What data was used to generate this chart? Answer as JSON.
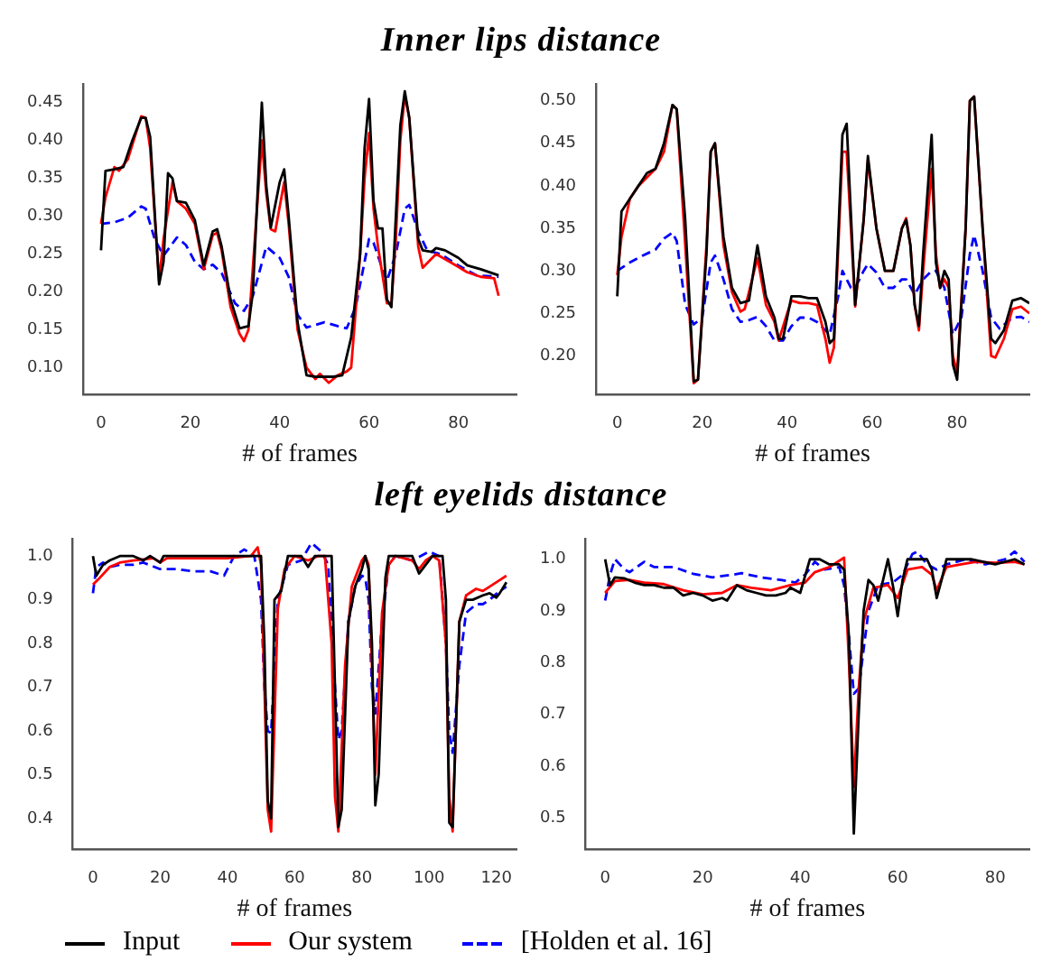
{
  "chart_data": [
    {
      "type": "line",
      "title": "Inner lips distance",
      "xlabel": "# of frames",
      "xlim": [
        -4,
        93
      ],
      "ylim": [
        0.065,
        0.475
      ],
      "xticks": [
        0,
        20,
        40,
        60,
        80
      ],
      "yticks": [
        {
          "value": 0.1,
          "label": "0.10"
        },
        0.15,
        {
          "value": 0.2,
          "label": "0.20"
        },
        0.25,
        {
          "value": 0.3,
          "label": "0.30"
        },
        0.35,
        {
          "value": 0.4,
          "label": "0.40"
        },
        0.45
      ],
      "grid": false,
      "legend": "bottom",
      "series": [
        {
          "name": "Input",
          "color": "#000000",
          "x": [
            0,
            1,
            3,
            5,
            7,
            9,
            10,
            11,
            13,
            14,
            15,
            16,
            17,
            19,
            21,
            23,
            25,
            26,
            27,
            29,
            31,
            33,
            34,
            36,
            37,
            38,
            40,
            41,
            42,
            44,
            46,
            48,
            50,
            52,
            54,
            56,
            58,
            59,
            60,
            61,
            62,
            63,
            64,
            65,
            66,
            67,
            68,
            69,
            71,
            72,
            74,
            75,
            77,
            80,
            82,
            85,
            89
          ],
          "values": [
            0.255,
            0.36,
            0.362,
            0.365,
            0.4,
            0.43,
            0.43,
            0.405,
            0.21,
            0.24,
            0.357,
            0.35,
            0.32,
            0.318,
            0.295,
            0.235,
            0.28,
            0.283,
            0.26,
            0.19,
            0.152,
            0.155,
            0.2,
            0.45,
            0.34,
            0.285,
            0.345,
            0.362,
            0.3,
            0.16,
            0.09,
            0.088,
            0.088,
            0.088,
            0.09,
            0.14,
            0.25,
            0.39,
            0.455,
            0.32,
            0.284,
            0.284,
            0.19,
            0.18,
            0.3,
            0.42,
            0.465,
            0.43,
            0.27,
            0.255,
            0.253,
            0.258,
            0.255,
            0.245,
            0.235,
            0.23,
            0.222
          ]
        },
        {
          "name": "Our system",
          "color": "#ff0000",
          "x": [
            0,
            1,
            3,
            4,
            6,
            9,
            10,
            11,
            13,
            14,
            16,
            17,
            19,
            21,
            23,
            25,
            26,
            27,
            29,
            31,
            32,
            33,
            36,
            37,
            38,
            39,
            41,
            42,
            44,
            46,
            48,
            49,
            51,
            53,
            55,
            56,
            58,
            59,
            60,
            61,
            62,
            64,
            65,
            66,
            67,
            68,
            69,
            71,
            72,
            75,
            78,
            82,
            85,
            88,
            89
          ],
          "values": [
            0.29,
            0.325,
            0.365,
            0.36,
            0.375,
            0.432,
            0.43,
            0.39,
            0.215,
            0.27,
            0.345,
            0.32,
            0.31,
            0.29,
            0.23,
            0.275,
            0.278,
            0.255,
            0.18,
            0.145,
            0.135,
            0.15,
            0.4,
            0.33,
            0.283,
            0.28,
            0.345,
            0.29,
            0.15,
            0.1,
            0.085,
            0.092,
            0.08,
            0.09,
            0.095,
            0.1,
            0.25,
            0.35,
            0.41,
            0.31,
            0.26,
            0.185,
            0.185,
            0.27,
            0.4,
            0.46,
            0.43,
            0.26,
            0.232,
            0.25,
            0.24,
            0.226,
            0.22,
            0.218,
            0.195
          ]
        },
        {
          "name": "[Holden et al. 16]",
          "color": "#0000ff",
          "line_style": "dashed",
          "x": [
            0,
            3,
            6,
            9,
            10,
            12,
            14,
            17,
            19,
            21,
            23,
            25,
            27,
            30,
            32,
            34,
            37,
            40,
            42,
            44,
            46,
            50,
            53,
            55,
            57,
            60,
            61,
            63,
            64,
            66,
            68,
            69,
            71,
            73,
            76,
            80,
            84,
            89
          ],
          "values": [
            0.29,
            0.292,
            0.298,
            0.313,
            0.31,
            0.27,
            0.248,
            0.272,
            0.262,
            0.24,
            0.23,
            0.236,
            0.225,
            0.185,
            0.175,
            0.195,
            0.26,
            0.245,
            0.22,
            0.17,
            0.153,
            0.16,
            0.155,
            0.152,
            0.18,
            0.27,
            0.265,
            0.23,
            0.215,
            0.25,
            0.31,
            0.315,
            0.28,
            0.255,
            0.25,
            0.235,
            0.222,
            0.22
          ]
        }
      ]
    },
    {
      "type": "line",
      "xlabel": "# of frames",
      "xlim": [
        -5,
        97
      ],
      "ylim": [
        0.155,
        0.52
      ],
      "xticks": [
        0,
        20,
        40,
        60,
        80
      ],
      "yticks": [
        {
          "value": 0.2,
          "label": "0.20"
        },
        0.25,
        {
          "value": 0.3,
          "label": "0.30"
        },
        0.35,
        {
          "value": 0.4,
          "label": "0.40"
        },
        0.45,
        {
          "value": 0.5,
          "label": "0.50"
        }
      ],
      "grid": false,
      "series": [
        {
          "color": "#000000",
          "x": [
            0,
            1,
            3,
            5,
            7,
            9,
            11,
            13,
            14,
            16,
            18,
            19,
            21,
            22,
            23,
            25,
            27,
            29,
            31,
            33,
            35,
            37,
            38,
            39,
            41,
            43,
            45,
            47,
            49,
            50,
            51,
            53,
            54,
            56,
            58,
            59,
            61,
            63,
            65,
            67,
            68,
            69,
            70,
            71,
            72,
            74,
            75,
            76,
            77,
            78,
            79,
            80,
            82,
            83,
            84,
            86,
            88,
            89,
            91,
            93,
            95,
            97
          ],
          "values": [
            0.27,
            0.37,
            0.385,
            0.4,
            0.415,
            0.42,
            0.45,
            0.495,
            0.49,
            0.36,
            0.17,
            0.172,
            0.32,
            0.44,
            0.45,
            0.34,
            0.28,
            0.262,
            0.265,
            0.33,
            0.27,
            0.245,
            0.22,
            0.22,
            0.27,
            0.27,
            0.268,
            0.268,
            0.24,
            0.215,
            0.22,
            0.46,
            0.473,
            0.26,
            0.36,
            0.435,
            0.35,
            0.3,
            0.3,
            0.35,
            0.36,
            0.33,
            0.26,
            0.235,
            0.32,
            0.46,
            0.31,
            0.28,
            0.3,
            0.29,
            0.19,
            0.172,
            0.35,
            0.5,
            0.505,
            0.35,
            0.22,
            0.215,
            0.23,
            0.265,
            0.268,
            0.262
          ]
        },
        {
          "color": "#ff0000",
          "x": [
            0,
            1,
            3,
            5,
            7,
            9,
            11,
            13,
            14,
            16,
            18,
            19,
            21,
            22,
            23,
            25,
            27,
            29,
            30,
            33,
            35,
            37,
            38,
            40,
            41,
            43,
            45,
            47,
            49,
            50,
            51,
            53,
            54,
            56,
            58,
            59,
            61,
            63,
            65,
            67,
            68,
            69,
            70,
            71,
            72,
            74,
            75,
            76,
            77,
            78,
            79,
            80,
            82,
            83,
            84,
            86,
            88,
            89,
            91,
            93,
            95,
            97
          ],
          "values": [
            0.295,
            0.34,
            0.385,
            0.4,
            0.41,
            0.42,
            0.44,
            0.495,
            0.49,
            0.33,
            0.168,
            0.172,
            0.33,
            0.44,
            0.45,
            0.33,
            0.275,
            0.252,
            0.255,
            0.315,
            0.26,
            0.24,
            0.218,
            0.25,
            0.265,
            0.262,
            0.262,
            0.26,
            0.22,
            0.192,
            0.21,
            0.44,
            0.44,
            0.258,
            0.36,
            0.43,
            0.35,
            0.3,
            0.3,
            0.35,
            0.362,
            0.33,
            0.26,
            0.23,
            0.3,
            0.42,
            0.32,
            0.28,
            0.29,
            0.28,
            0.2,
            0.18,
            0.35,
            0.5,
            0.505,
            0.35,
            0.2,
            0.198,
            0.22,
            0.255,
            0.258,
            0.25
          ]
        },
        {
          "color": "#0000ff",
          "line_style": "dashed",
          "x": [
            0,
            3,
            6,
            9,
            11,
            13,
            14,
            16,
            18,
            20,
            22,
            23,
            25,
            27,
            29,
            31,
            33,
            35,
            37,
            39,
            41,
            43,
            45,
            47,
            49,
            50,
            52,
            53,
            55,
            56,
            58,
            59,
            61,
            63,
            65,
            67,
            68,
            70,
            72,
            74,
            75,
            77,
            79,
            81,
            83,
            84,
            86,
            88,
            90,
            93,
            95,
            97
          ],
          "values": [
            0.3,
            0.31,
            0.318,
            0.325,
            0.338,
            0.345,
            0.335,
            0.26,
            0.237,
            0.245,
            0.31,
            0.318,
            0.29,
            0.255,
            0.24,
            0.242,
            0.246,
            0.235,
            0.218,
            0.218,
            0.235,
            0.245,
            0.245,
            0.24,
            0.23,
            0.225,
            0.27,
            0.3,
            0.28,
            0.28,
            0.3,
            0.308,
            0.298,
            0.28,
            0.28,
            0.29,
            0.29,
            0.272,
            0.29,
            0.3,
            0.3,
            0.28,
            0.225,
            0.245,
            0.32,
            0.342,
            0.3,
            0.245,
            0.232,
            0.245,
            0.246,
            0.24
          ]
        }
      ]
    },
    {
      "type": "line",
      "title": "left eyelids distance",
      "xlabel": "# of frames",
      "xlim": [
        -6,
        126
      ],
      "ylim": [
        0.33,
        1.04
      ],
      "xticks": [
        0,
        20,
        40,
        60,
        80,
        100,
        120
      ],
      "yticks": [
        0.4,
        0.5,
        0.6,
        0.7,
        0.8,
        0.9,
        {
          "value": 1.0,
          "label": "1.0"
        }
      ],
      "grid": false,
      "series": [
        {
          "color": "#000000",
          "x": [
            0,
            1,
            3,
            5,
            8,
            12,
            15,
            17,
            20,
            21,
            30,
            40,
            45,
            50,
            51,
            52,
            53,
            54,
            56,
            58,
            62,
            64,
            66,
            70,
            71,
            72,
            73,
            74,
            76,
            78,
            80,
            81,
            82,
            83,
            84,
            85,
            87,
            88,
            93,
            95,
            97,
            99,
            101,
            104,
            105,
            106,
            107,
            109,
            111,
            113,
            116,
            118,
            120,
            121,
            123
          ],
          "values": [
            1.0,
            0.955,
            0.98,
            0.99,
            1.0,
            1.0,
            0.99,
            1.0,
            0.985,
            1.0,
            1.0,
            1.0,
            1.0,
            1.0,
            0.8,
            0.44,
            0.4,
            0.9,
            0.92,
            1.0,
            1.0,
            0.975,
            1.0,
            1.0,
            1.0,
            0.7,
            0.38,
            0.42,
            0.85,
            0.93,
            0.97,
            1.0,
            0.97,
            0.8,
            0.43,
            0.5,
            0.95,
            1.0,
            1.0,
            1.0,
            0.96,
            0.98,
            1.0,
            1.0,
            0.9,
            0.39,
            0.38,
            0.85,
            0.9,
            0.9,
            0.91,
            0.915,
            0.905,
            0.915,
            0.94
          ]
        },
        {
          "color": "#ff0000",
          "x": [
            0,
            2,
            5,
            8,
            12,
            18,
            20,
            22,
            30,
            40,
            47,
            49,
            50,
            51,
            52,
            53,
            55,
            57,
            60,
            64,
            67,
            69,
            71,
            72,
            73,
            75,
            77,
            80,
            81,
            82,
            83,
            84,
            86,
            88,
            90,
            95,
            97,
            99,
            101,
            103,
            105,
            106,
            107,
            109,
            111,
            114,
            116,
            118,
            121,
            123
          ],
          "values": [
            0.935,
            0.95,
            0.975,
            0.985,
            0.99,
            0.995,
            0.985,
            0.995,
            0.995,
            0.995,
            1.0,
            1.02,
            0.98,
            0.7,
            0.42,
            0.37,
            0.88,
            0.97,
            1.0,
            0.99,
            1.0,
            1.0,
            0.8,
            0.45,
            0.37,
            0.75,
            0.93,
            0.99,
            1.0,
            0.98,
            0.75,
            0.5,
            0.87,
            0.98,
            1.0,
            0.99,
            0.97,
            0.99,
            1.0,
            0.99,
            0.8,
            0.45,
            0.37,
            0.85,
            0.91,
            0.925,
            0.92,
            0.93,
            0.945,
            0.955
          ]
        },
        {
          "color": "#0000ff",
          "line_style": "dashed",
          "x": [
            0,
            1,
            3,
            5,
            8,
            12,
            15,
            20,
            25,
            30,
            35,
            39,
            42,
            45,
            48,
            50,
            51,
            52,
            53,
            55,
            58,
            62,
            65,
            68,
            70,
            72,
            73,
            74,
            76,
            78,
            80,
            81,
            82,
            83,
            84,
            86,
            88,
            90,
            95,
            100,
            103,
            105,
            106,
            107,
            109,
            111,
            114,
            116,
            118,
            121,
            123
          ],
          "values": [
            0.915,
            0.975,
            0.985,
            0.975,
            0.98,
            0.98,
            0.985,
            0.97,
            0.97,
            0.965,
            0.965,
            0.955,
            1.0,
            1.015,
            1.0,
            0.9,
            0.7,
            0.6,
            0.595,
            0.9,
            0.98,
            0.99,
            1.03,
            1.01,
            0.98,
            0.7,
            0.58,
            0.6,
            0.85,
            0.93,
            0.955,
            0.95,
            0.9,
            0.7,
            0.64,
            0.85,
            0.98,
            1.0,
            0.99,
            1.01,
            1.0,
            0.8,
            0.6,
            0.55,
            0.75,
            0.87,
            0.89,
            0.89,
            0.9,
            0.92,
            0.93
          ]
        }
      ]
    },
    {
      "type": "line",
      "xlabel": "# of frames",
      "xlim": [
        -4,
        87
      ],
      "ylim": [
        0.44,
        1.04
      ],
      "xticks": [
        0,
        20,
        40,
        60,
        80
      ],
      "yticks": [
        0.5,
        0.6,
        0.7,
        0.8,
        0.9,
        {
          "value": 1.0,
          "label": "1.0"
        }
      ],
      "grid": false,
      "series": [
        {
          "color": "#000000",
          "x": [
            0,
            1,
            2,
            4,
            6,
            8,
            10,
            12,
            14,
            16,
            18,
            20,
            22,
            24,
            25,
            27,
            29,
            31,
            33,
            35,
            37,
            38,
            40,
            42,
            44,
            46,
            48,
            49,
            50,
            51,
            52,
            53,
            54,
            55,
            56,
            57,
            58,
            59,
            60,
            61,
            62,
            66,
            67,
            68,
            69,
            70,
            75,
            80,
            84,
            86
          ],
          "values": [
            1.0,
            0.95,
            0.965,
            0.963,
            0.955,
            0.95,
            0.95,
            0.945,
            0.945,
            0.93,
            0.935,
            0.93,
            0.92,
            0.925,
            0.92,
            0.95,
            0.94,
            0.935,
            0.93,
            0.93,
            0.935,
            0.945,
            0.935,
            1.0,
            1.0,
            0.99,
            0.99,
            0.98,
            0.85,
            0.47,
            0.7,
            0.9,
            0.96,
            0.95,
            0.92,
            0.96,
            1.0,
            0.95,
            0.89,
            0.96,
            1.0,
            1.0,
            0.98,
            0.925,
            0.96,
            1.0,
            1.0,
            0.99,
            1.0,
            0.99
          ]
        },
        {
          "color": "#ff0000",
          "x": [
            0,
            2,
            5,
            8,
            12,
            16,
            20,
            24,
            27,
            30,
            34,
            38,
            41,
            43,
            46,
            49,
            50,
            51,
            52,
            53,
            55,
            58,
            60,
            62,
            65,
            67,
            68,
            70,
            73,
            76,
            80,
            84,
            86
          ],
          "values": [
            0.935,
            0.958,
            0.96,
            0.955,
            0.952,
            0.94,
            0.932,
            0.935,
            0.95,
            0.945,
            0.94,
            0.95,
            0.955,
            0.975,
            0.985,
            1.003,
            0.8,
            0.56,
            0.75,
            0.88,
            0.945,
            0.95,
            0.925,
            0.98,
            0.985,
            0.97,
            0.94,
            0.985,
            0.99,
            0.995,
            0.993,
            0.995,
            0.99
          ]
        },
        {
          "color": "#0000ff",
          "line_style": "dashed",
          "x": [
            0,
            1,
            2,
            4,
            5,
            8,
            10,
            14,
            18,
            22,
            26,
            28,
            32,
            36,
            39,
            41,
            43,
            45,
            48,
            49,
            50,
            51,
            52,
            54,
            56,
            59,
            61,
            63,
            64,
            66,
            68,
            70,
            74,
            78,
            82,
            84,
            86
          ],
          "values": [
            0.92,
            0.97,
            1.0,
            0.98,
            0.975,
            0.995,
            0.985,
            0.985,
            0.972,
            0.965,
            0.97,
            0.973,
            0.965,
            0.96,
            0.955,
            0.97,
            0.995,
            0.98,
            0.985,
            0.95,
            0.85,
            0.74,
            0.75,
            0.9,
            0.95,
            0.955,
            0.97,
            1.01,
            1.015,
            0.99,
            0.98,
            0.99,
            1.0,
            0.99,
            1.0,
            1.015,
            0.995
          ]
        }
      ]
    }
  ]
}
